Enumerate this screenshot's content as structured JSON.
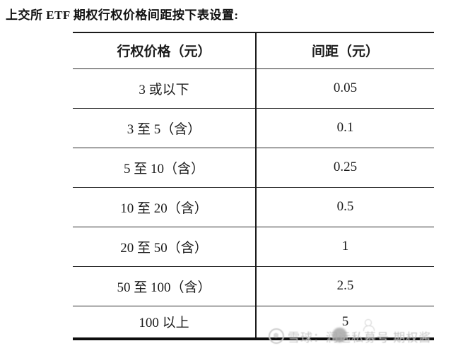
{
  "page": {
    "title": "上交所 ETF 期权行权价格间距按下表设置:"
  },
  "table": {
    "headers": [
      "行权价格（元）",
      "间距（元）"
    ],
    "rows": [
      {
        "price": "3 或以下",
        "spacing": "0.05"
      },
      {
        "price": "3 至 5（含）",
        "spacing": "0.1"
      },
      {
        "price": "5 至 10（含）",
        "spacing": "0.25"
      },
      {
        "price": "10 至 20（含）",
        "spacing": "0.5"
      },
      {
        "price": "20 至 50（含）",
        "spacing": "1"
      },
      {
        "price": "50 至 100（含）",
        "spacing": "2.5"
      },
      {
        "price": "100 以上",
        "spacing": "5"
      }
    ]
  },
  "watermark": {
    "logo_glyph": "❅",
    "text": "雪球：润远私募号 期权酱"
  },
  "colors": {
    "text": "#1b1b1b",
    "border": "#1b1b1b",
    "bottom_rule": "#0e0e0e",
    "watermark": "#c6c6c6",
    "background": "#ffffff"
  }
}
